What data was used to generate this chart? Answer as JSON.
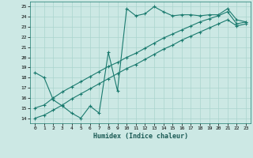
{
  "title": "",
  "xlabel": "Humidex (Indice chaleur)",
  "ylabel": "",
  "xlim": [
    -0.5,
    23.5
  ],
  "ylim": [
    13.5,
    25.5
  ],
  "xticks": [
    0,
    1,
    2,
    3,
    4,
    5,
    6,
    7,
    8,
    9,
    10,
    11,
    12,
    13,
    14,
    15,
    16,
    17,
    18,
    19,
    20,
    21,
    22,
    23
  ],
  "yticks": [
    14,
    15,
    16,
    17,
    18,
    19,
    20,
    21,
    22,
    23,
    24,
    25
  ],
  "bg_color": "#cce8e4",
  "line_color": "#1a7a6e",
  "grid_color": "#aad4ce",
  "line1_y": [
    18.5,
    18.0,
    15.8,
    15.2,
    14.5,
    14.0,
    15.2,
    14.5,
    20.5,
    16.7,
    24.8,
    24.1,
    24.3,
    25.0,
    24.5,
    24.1,
    24.2,
    24.2,
    24.1,
    24.2,
    24.2,
    24.8,
    23.7,
    23.5
  ],
  "line2_y": [
    15.0,
    15.3,
    16.0,
    16.6,
    17.1,
    17.6,
    18.1,
    18.6,
    19.1,
    19.5,
    20.0,
    20.4,
    20.9,
    21.4,
    21.9,
    22.3,
    22.7,
    23.1,
    23.5,
    23.8,
    24.1,
    24.5,
    23.3,
    23.5
  ],
  "line3_y": [
    14.0,
    14.3,
    14.8,
    15.3,
    15.9,
    16.4,
    16.9,
    17.4,
    17.9,
    18.4,
    18.9,
    19.3,
    19.8,
    20.3,
    20.8,
    21.2,
    21.7,
    22.1,
    22.5,
    22.9,
    23.3,
    23.7,
    23.1,
    23.3
  ]
}
